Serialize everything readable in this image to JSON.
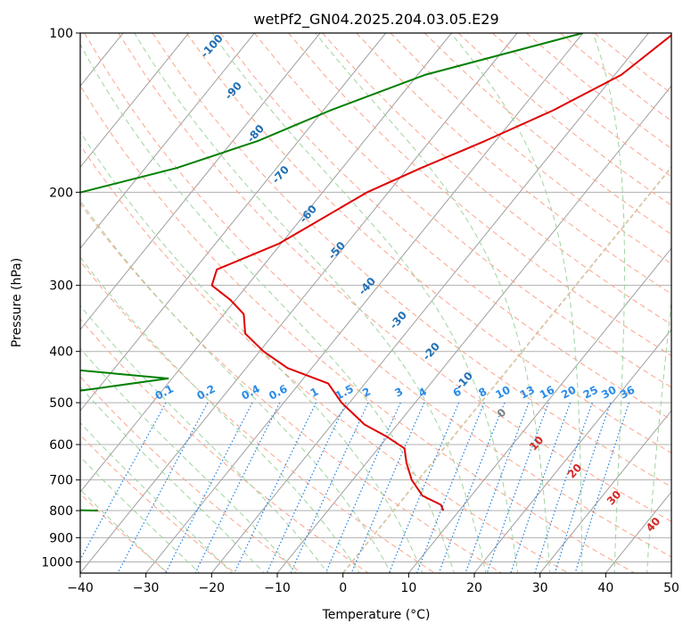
{
  "chart_data": {
    "type": "line",
    "title": "wetPf2_GN04.2025.204.03.05.E29",
    "xlabel": "Temperature (°C)",
    "ylabel": "Pressure (hPa)",
    "xlim": [
      -40,
      50
    ],
    "ylim": [
      1050,
      100
    ],
    "y_scale": "log",
    "skew": "skew-T log-P",
    "grid": true,
    "x_ticks": [
      -40,
      -30,
      -20,
      -10,
      0,
      10,
      20,
      30,
      40,
      50
    ],
    "x_tick_labels": [
      "−40",
      "−30",
      "−20",
      "−10",
      "0",
      "10",
      "20",
      "30",
      "40",
      "50"
    ],
    "y_ticks": [
      100,
      200,
      300,
      400,
      500,
      600,
      700,
      800,
      900,
      1000
    ],
    "y_tick_labels": [
      "100",
      "200",
      "300",
      "400",
      "500",
      "600",
      "700",
      "800",
      "900",
      "1000"
    ],
    "series": [
      {
        "role": "temperature",
        "color": "#e00000",
        "points": [
          [
            -16.1,
            100
          ],
          [
            -19.0,
            120
          ],
          [
            -25.0,
            140
          ],
          [
            -31.6,
            160
          ],
          [
            -38.0,
            180
          ],
          [
            -43.2,
            200
          ],
          [
            -50.3,
            250
          ],
          [
            -56.6,
            280
          ],
          [
            -55.4,
            300
          ],
          [
            -50.7,
            320
          ],
          [
            -47.0,
            340
          ],
          [
            -44.4,
            370
          ],
          [
            -39.4,
            400
          ],
          [
            -33.7,
            430
          ],
          [
            -25.6,
            460
          ],
          [
            -21.2,
            500
          ],
          [
            -15.0,
            550
          ],
          [
            -10.1,
            580
          ],
          [
            -6.0,
            610
          ],
          [
            -3.9,
            650
          ],
          [
            -1.0,
            700
          ],
          [
            2.6,
            750
          ],
          [
            6.5,
            780
          ],
          [
            7.6,
            800
          ]
        ]
      },
      {
        "role": "dewpoint",
        "color": "#008000",
        "points": [
          [
            -30.0,
            100
          ],
          [
            -48.9,
            120
          ],
          [
            -58.9,
            140
          ],
          [
            -66.2,
            160
          ],
          [
            -75.2,
            180
          ],
          [
            -88.4,
            203
          ],
          [
            -88.6,
            250
          ],
          [
            -79.0,
            275
          ],
          [
            -78.6,
            285
          ],
          [
            -90.5,
            300
          ],
          [
            -108.6,
            312
          ],
          [
            -124.5,
            330
          ],
          [
            -129.5,
            345
          ],
          [
            -130.6,
            360
          ],
          [
            -128.1,
            385
          ],
          [
            -116.8,
            405
          ],
          [
            -69.1,
            430
          ],
          [
            -50.6,
            450
          ],
          [
            -60.3,
            470
          ],
          [
            -75.0,
            500
          ],
          [
            -90.0,
            525
          ],
          [
            -85.0,
            540
          ],
          [
            -92.0,
            560
          ],
          [
            -95.0,
            580
          ],
          [
            -80.0,
            610
          ],
          [
            -76.0,
            640
          ],
          [
            -80.0,
            650
          ],
          [
            -99.0,
            680
          ],
          [
            -99.3,
            690
          ],
          [
            -86.0,
            720
          ],
          [
            -81.0,
            745
          ],
          [
            -74.0,
            760
          ],
          [
            -73.5,
            765
          ],
          [
            -78.0,
            780
          ],
          [
            -64.0,
            790
          ],
          [
            -57.0,
            795
          ],
          [
            -45.0,
            800
          ]
        ]
      }
    ],
    "dry_adiabat_labels": [
      "-100",
      "-90",
      "-80",
      "-70",
      "-60",
      "-50",
      "-40",
      "-30",
      "-20",
      "-10",
      "0",
      "10",
      "20",
      "30",
      "40"
    ],
    "mixing_ratio_labels": [
      "0.1",
      "0.2",
      "0.4",
      "0.6",
      "1",
      "1.5",
      "2",
      "3",
      "4",
      "6",
      "8",
      "10",
      "13",
      "16",
      "20",
      "25",
      "30",
      "36"
    ],
    "mixing_ratio_values": [
      0.1,
      0.2,
      0.4,
      0.6,
      1,
      1.5,
      2,
      3,
      4,
      6,
      8,
      10,
      13,
      16,
      20,
      25,
      30,
      36
    ],
    "colors": {
      "dry_adiabat": "#fca48c",
      "moist_adiabat": "#9fd49f",
      "mixing_ratio": "#1f7fe0",
      "isotherm": "#a0a0a0",
      "isobar": "#b0b0b0",
      "label_cold": "#1f6fb4",
      "label_zero": "#808080",
      "label_warm": "#d62728",
      "mixing_label": "#2a8ce8",
      "zero_isotherm": "#d8c6a8"
    }
  }
}
